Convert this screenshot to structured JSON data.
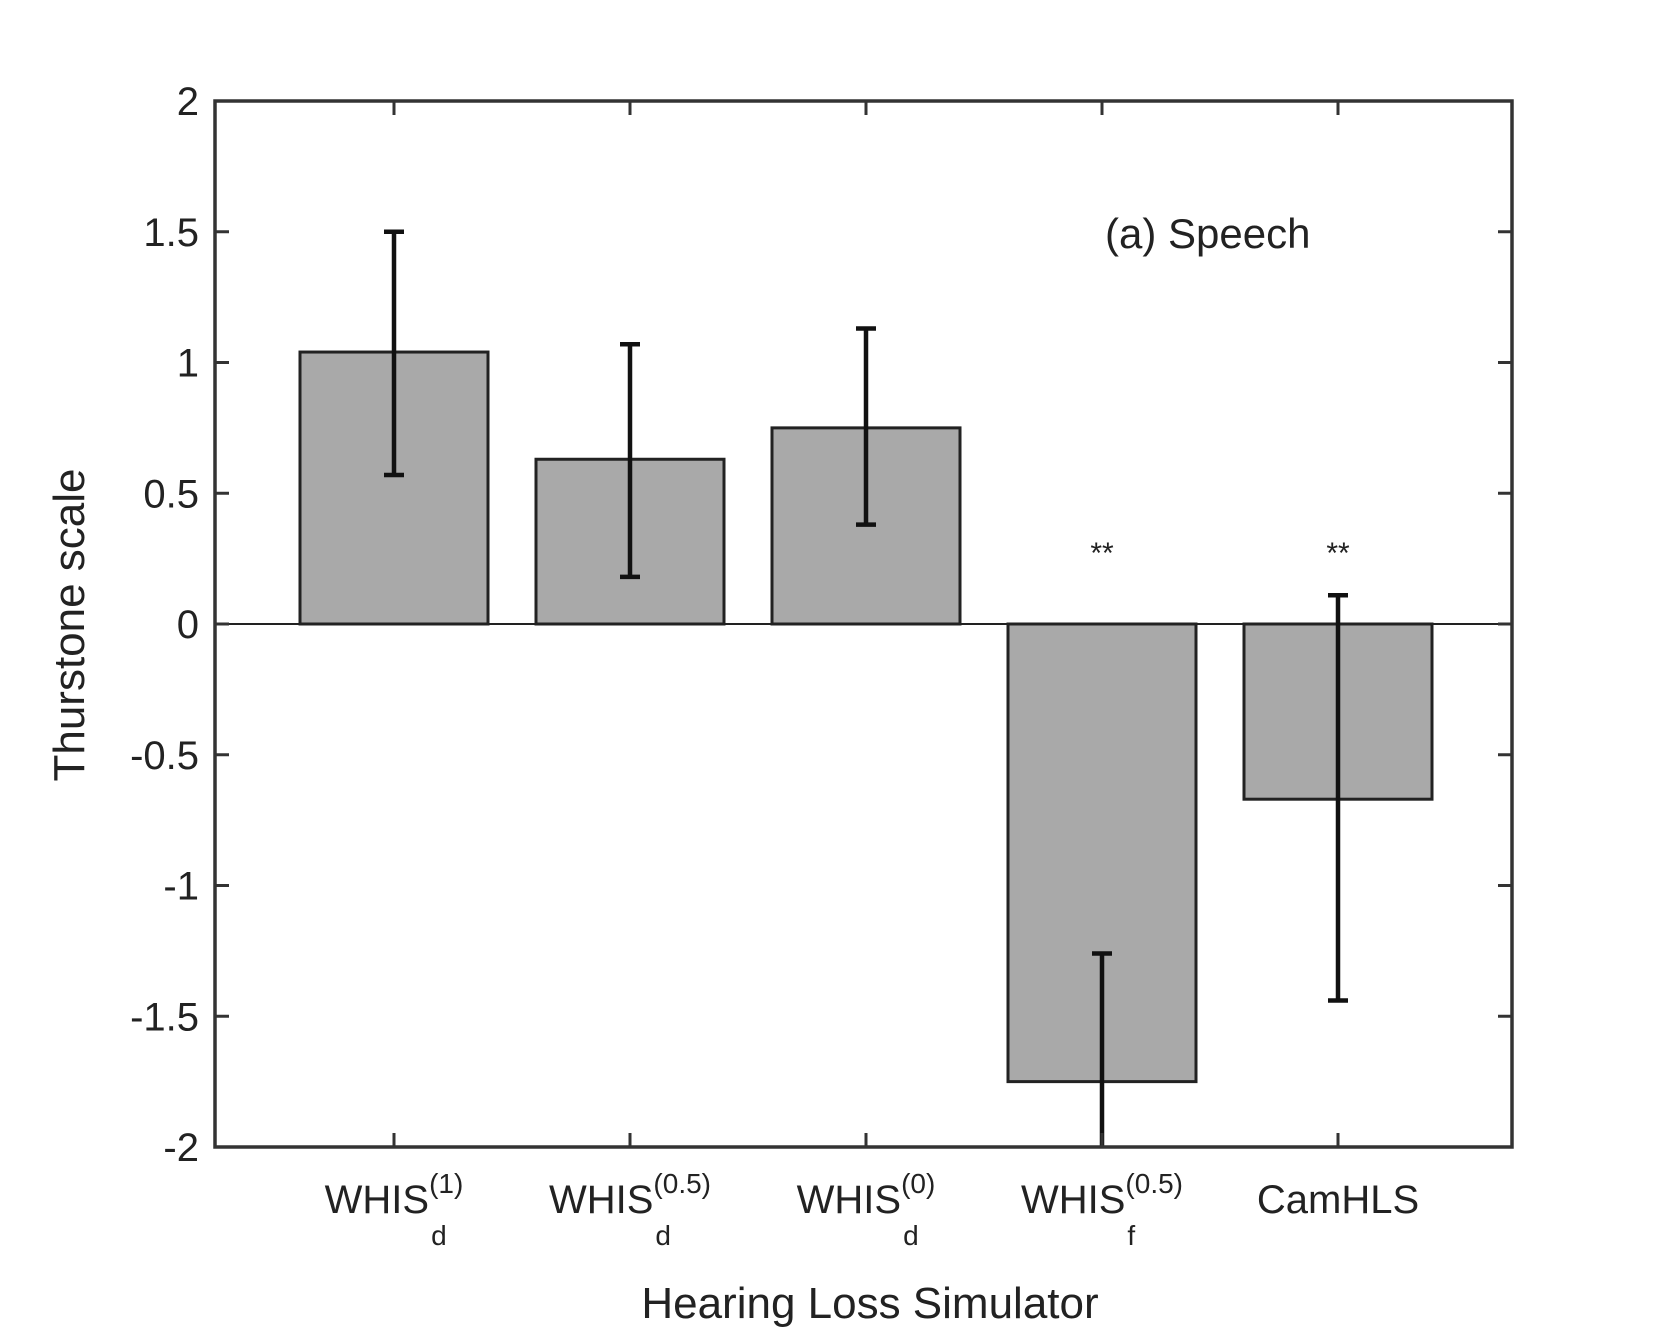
{
  "chart_data": {
    "type": "bar",
    "title": "",
    "annotation": "(a) Speech",
    "xlabel": "Hearing Loss Simulator",
    "ylabel": "Thurstone scale",
    "ylim": [
      -2,
      2
    ],
    "yticks": [
      "2",
      "1.5",
      "1",
      "0.5",
      "0",
      "-0.5",
      "-1",
      "-1.5",
      "-2"
    ],
    "categories": [
      {
        "main": "WHIS",
        "sup": "(1)",
        "sub": "d"
      },
      {
        "main": "WHIS",
        "sup": "(0.5)",
        "sub": "d"
      },
      {
        "main": "WHIS",
        "sup": "(0)",
        "sub": "d"
      },
      {
        "main": "WHIS",
        "sup": "(0.5)",
        "sub": "f"
      },
      {
        "main": "CamHLS",
        "sup": "",
        "sub": ""
      }
    ],
    "values": [
      1.04,
      0.63,
      0.75,
      -1.75,
      -0.67
    ],
    "error_low": [
      0.57,
      0.18,
      0.38,
      -2.0,
      -1.44
    ],
    "error_high": [
      1.5,
      1.07,
      1.13,
      -1.26,
      0.11
    ],
    "significance": [
      "",
      "",
      "",
      "**",
      "**"
    ],
    "colors": {
      "bar": "#a9a9a9",
      "edge": "#222222",
      "axis": "#333333"
    }
  }
}
